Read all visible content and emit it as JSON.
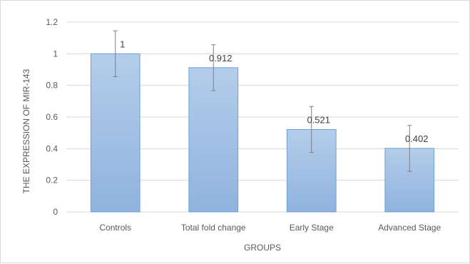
{
  "chart_data": {
    "type": "bar",
    "categories": [
      "Controls",
      "Total fold change",
      "Early Stage",
      "Advanced Stage"
    ],
    "values": [
      1,
      0.912,
      0.521,
      0.402
    ],
    "data_labels": [
      "1",
      "0.912",
      "0.521",
      "0.402"
    ],
    "error_bars": [
      0.145,
      0.145,
      0.145,
      0.145
    ],
    "xlabel": "GROUPS",
    "ylabel": "THE EXPRESSION OF MIR-143",
    "ylim": [
      0,
      1.2
    ],
    "yticks": [
      0,
      0.2,
      0.4,
      0.6,
      0.8,
      1,
      1.2
    ],
    "ytick_labels": [
      "0",
      "0.2",
      "0.4",
      "0.6",
      "0.8",
      "1",
      "1.2"
    ],
    "grid": true,
    "legend": "none",
    "colors": {
      "bar_fill_top": "#b4cdea",
      "bar_fill_bottom": "#8fb3de",
      "bar_stroke": "#6f9fd8",
      "gridline": "#d9d9d9",
      "error_bar": "#7f7f7f"
    }
  }
}
